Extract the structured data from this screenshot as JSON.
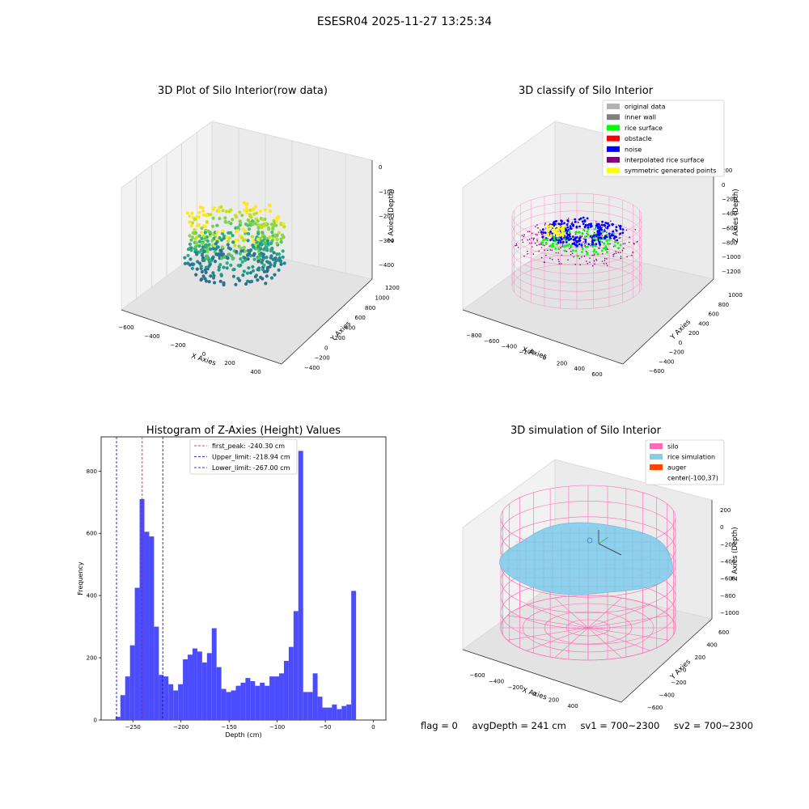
{
  "figure": {
    "suptitle": "ESESR04 2025-11-27 13:25:34",
    "footer": {
      "flag": "flag = 0",
      "avg_depth": "avgDepth = 241 cm",
      "sv1": "sv1 = 700~2300",
      "sv2": "sv2 = 700~2300"
    }
  },
  "colors": {
    "histogram_bar": "#4c4cff",
    "first_peak_line": "#ff0000",
    "limit_line": "#0000aa",
    "original_data": "#b3b3b3",
    "inner_wall": "#808080",
    "rice_surface": "#00ff00",
    "obstacle": "#ff0000",
    "noise": "#0000ff",
    "interpolated_rice_surface": "#800080",
    "symmetric_generated_points": "#ffff00",
    "silo": "#ff69b4",
    "rice_simulation": "#87ceeb",
    "auger": "#ff4500"
  },
  "chart_data": [
    {
      "type": "scatter",
      "projection": "3d",
      "title": "3D Plot of Silo Interior(row data)",
      "xlabel": "X Axies",
      "ylabel": "Y Axies",
      "zlabel": "Z Axies (Depth)",
      "x_ticks": [
        "−600",
        "−400",
        "−200",
        "0",
        "200",
        "400"
      ],
      "y_ticks": [
        "−400",
        "−200",
        "0",
        "200",
        "400",
        "600",
        "800",
        "1000",
        "1200"
      ],
      "z_ticks": [
        "0",
        "−100",
        "−200",
        "−300",
        "−400"
      ],
      "colormap": "viridis",
      "grid": true
    },
    {
      "type": "scatter",
      "projection": "3d",
      "title": "3D classify of Silo Interior",
      "xlabel": "X Axies",
      "ylabel": "Y Axies",
      "zlabel": "Z Axies (Depth)",
      "x_ticks": [
        "−800",
        "−600",
        "−400",
        "−200",
        "0",
        "200",
        "400",
        "600"
      ],
      "y_ticks": [
        "−600",
        "−400",
        "−200",
        "0",
        "200",
        "400",
        "600",
        "800",
        "1000"
      ],
      "z_ticks": [
        "200",
        "0",
        "−200",
        "−400",
        "−600",
        "−800",
        "−1000",
        "−1200"
      ],
      "legend": [
        "original data",
        "inner wall",
        "rice surface",
        "obstacle",
        "noise",
        "interpolated rice surface",
        "symmetric generated points"
      ],
      "legend_position": "top-right",
      "grid": true
    },
    {
      "type": "bar",
      "title": "Histogram of Z-Axies (Height) Values",
      "xlabel": "Depth (cm)",
      "ylabel": "Frequency",
      "xlim": [
        -283,
        13
      ],
      "ylim": [
        0,
        910
      ],
      "x_ticks": [
        -250,
        -200,
        -150,
        -100,
        -50,
        0
      ],
      "y_ticks": [
        0,
        200,
        400,
        600,
        800
      ],
      "bin_start": -268,
      "bin_width": 5,
      "values": [
        10,
        80,
        140,
        240,
        425,
        710,
        605,
        590,
        300,
        145,
        140,
        115,
        95,
        115,
        195,
        210,
        230,
        220,
        185,
        215,
        295,
        170,
        100,
        90,
        95,
        110,
        120,
        135,
        125,
        110,
        120,
        110,
        140,
        140,
        150,
        190,
        235,
        350,
        865,
        90,
        90,
        150,
        75,
        40,
        40,
        50,
        35,
        45,
        50,
        415
      ],
      "vlines": [
        {
          "label": "first_peak: -240.30 cm",
          "x": -240.3,
          "color": "#ff0000"
        },
        {
          "label": "Upper_limit: -218.94 cm",
          "x": -218.94,
          "color": "#0000aa"
        },
        {
          "label": "Lower_limit: -267.00 cm",
          "x": -267.0,
          "color": "#0000aa"
        }
      ],
      "legend_position": "top-center",
      "grid": false
    },
    {
      "type": "area",
      "projection": "3d",
      "title": "3D simulation of Silo Interior",
      "xlabel": "X Axies",
      "ylabel": "Y Axies",
      "zlabel": "Z Axies (Depth)",
      "x_ticks": [
        "−600",
        "−400",
        "−200",
        "0",
        "200",
        "400"
      ],
      "y_ticks": [
        "−600",
        "−400",
        "−200",
        "0",
        "200",
        "400",
        "600"
      ],
      "z_ticks": [
        "200",
        "0",
        "−200",
        "−400",
        "−600",
        "−800",
        "−1000"
      ],
      "legend": [
        "silo",
        "rice simulation",
        "auger",
        "center(-100,37)"
      ],
      "legend_position": "top-right",
      "grid": true
    }
  ]
}
